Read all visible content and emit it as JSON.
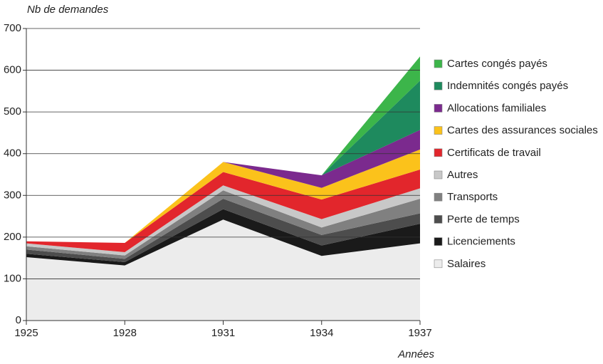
{
  "chart_data": {
    "type": "stacked_area",
    "y_label": "Nb de demandes",
    "x_label": "Années",
    "x": [
      1925,
      1928,
      1931,
      1934,
      1937
    ],
    "xlim": [
      1925,
      1937
    ],
    "xticks": [
      1925,
      1928,
      1931,
      1934,
      1937
    ],
    "ylim": [
      0,
      700
    ],
    "yticks": [
      0,
      100,
      200,
      300,
      400,
      500,
      600,
      700
    ],
    "grid": true,
    "legend": "right",
    "series": [
      {
        "name": "Salaires",
        "color": "#ececec",
        "values": [
          152,
          132,
          242,
          155,
          185
        ]
      },
      {
        "name": "Licenciements",
        "color": "#1a1a1a",
        "values": [
          8,
          8,
          25,
          25,
          47
        ]
      },
      {
        "name": "Perte de temps",
        "color": "#4d4d4d",
        "values": [
          10,
          8,
          25,
          25,
          25
        ]
      },
      {
        "name": "Transports",
        "color": "#808080",
        "values": [
          8,
          8,
          20,
          18,
          35
        ]
      },
      {
        "name": "Autres",
        "color": "#c8c8c8",
        "values": [
          7,
          8,
          12,
          20,
          25
        ]
      },
      {
        "name": "Certificats de travail",
        "color": "#e2262c",
        "values": [
          5,
          22,
          32,
          47,
          45
        ]
      },
      {
        "name": "Cartes des assurances sociales",
        "color": "#fbc21b",
        "values": [
          0,
          0,
          24,
          28,
          48
        ]
      },
      {
        "name": "Allocations familiales",
        "color": "#7b2a8e",
        "values": [
          0,
          0,
          0,
          30,
          47
        ]
      },
      {
        "name": "Indemnités congés payés",
        "color": "#1e8a5e",
        "values": [
          0,
          0,
          0,
          0,
          118
        ]
      },
      {
        "name": "Cartes congés payés",
        "color": "#3cb54a",
        "values": [
          0,
          0,
          0,
          0,
          58
        ]
      }
    ]
  }
}
